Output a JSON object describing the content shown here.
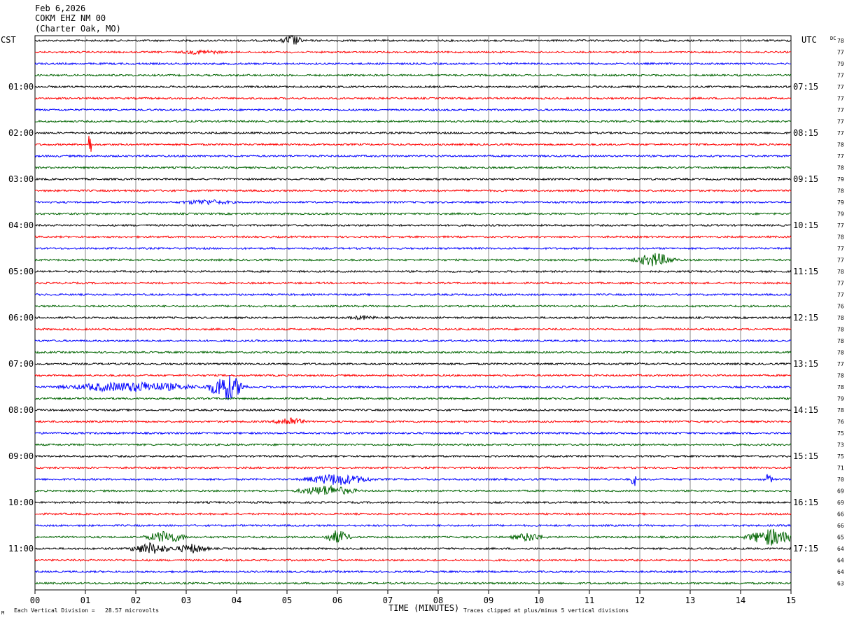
{
  "header": {
    "date": "Feb 6,2026",
    "station": "COKM EHZ NM 00",
    "location": "(Charter Oak, MO)",
    "left_tz": "CST",
    "right_tz": "UTC",
    "dc_label": "DC"
  },
  "footer": {
    "xlabel": "TIME (MINUTES)",
    "scale_note": "Each Vertical Division =   28.57 microvolts",
    "clip_note": "Traces clipped at plus/minus 5 vertical divisions"
  },
  "chart_data": {
    "type": "line",
    "subtype": "helicorder",
    "x_range": [
      0,
      15
    ],
    "x_ticks": [
      "00",
      "01",
      "02",
      "03",
      "04",
      "05",
      "06",
      "07",
      "08",
      "09",
      "10",
      "11",
      "12",
      "13",
      "14",
      "15"
    ],
    "trace_count": 48,
    "minutes_per_trace": 15,
    "trace_colors": [
      "#000000",
      "#ff0000",
      "#0000ff",
      "#006400"
    ],
    "left_hour_labels": [
      "01:00",
      "02:00",
      "03:00",
      "04:00",
      "05:00",
      "06:00",
      "07:00",
      "08:00",
      "09:00",
      "10:00",
      "11:00"
    ],
    "right_hour_labels": [
      "07:15",
      "08:15",
      "09:15",
      "10:15",
      "11:15",
      "12:15",
      "13:15",
      "14:15",
      "15:15",
      "16:15",
      "17:15"
    ],
    "dc_offsets": [
      78,
      77,
      79,
      77,
      77,
      77,
      77,
      77,
      77,
      78,
      77,
      78,
      79,
      78,
      79,
      79,
      77,
      78,
      77,
      77,
      78,
      77,
      77,
      76,
      78,
      78,
      78,
      78,
      77,
      78,
      78,
      79,
      78,
      76,
      75,
      73,
      75,
      71,
      70,
      69,
      69,
      66,
      66,
      65,
      64,
      64,
      64,
      63
    ],
    "events": [
      {
        "trace": 0,
        "minute": 5.1,
        "amplitude": 1.0,
        "duration": 0.25
      },
      {
        "trace": 1,
        "minute": 3.3,
        "amplitude": 0.3,
        "duration": 0.5
      },
      {
        "trace": 9,
        "minute": 1.08,
        "amplitude": 2.5,
        "duration": 0.06
      },
      {
        "trace": 14,
        "minute": 3.4,
        "amplitude": 0.4,
        "duration": 0.6
      },
      {
        "trace": 19,
        "minute": 12.3,
        "amplitude": 1.2,
        "duration": 0.5
      },
      {
        "trace": 24,
        "minute": 6.5,
        "amplitude": 0.3,
        "duration": 0.3
      },
      {
        "trace": 30,
        "minute": 2.2,
        "amplitude": 0.8,
        "duration": 1.3
      },
      {
        "trace": 30,
        "minute": 3.8,
        "amplitude": 2.5,
        "duration": 0.45
      },
      {
        "trace": 30,
        "minute": 1.2,
        "amplitude": 0.4,
        "duration": 1.0
      },
      {
        "trace": 33,
        "minute": 5.05,
        "amplitude": 0.8,
        "duration": 0.35
      },
      {
        "trace": 38,
        "minute": 6.0,
        "amplitude": 1.0,
        "duration": 0.8
      },
      {
        "trace": 38,
        "minute": 11.88,
        "amplitude": 2.0,
        "duration": 0.05
      },
      {
        "trace": 38,
        "minute": 14.55,
        "amplitude": 1.0,
        "duration": 0.1
      },
      {
        "trace": 39,
        "minute": 5.8,
        "amplitude": 0.9,
        "duration": 0.7
      },
      {
        "trace": 43,
        "minute": 2.6,
        "amplitude": 1.1,
        "duration": 0.5
      },
      {
        "trace": 43,
        "minute": 6.0,
        "amplitude": 1.2,
        "duration": 0.3
      },
      {
        "trace": 43,
        "minute": 9.8,
        "amplitude": 0.7,
        "duration": 0.4
      },
      {
        "trace": 43,
        "minute": 14.6,
        "amplitude": 1.5,
        "duration": 0.6
      },
      {
        "trace": 44,
        "minute": 2.3,
        "amplitude": 1.0,
        "duration": 0.5
      },
      {
        "trace": 44,
        "minute": 3.1,
        "amplitude": 0.8,
        "duration": 0.4
      }
    ]
  }
}
